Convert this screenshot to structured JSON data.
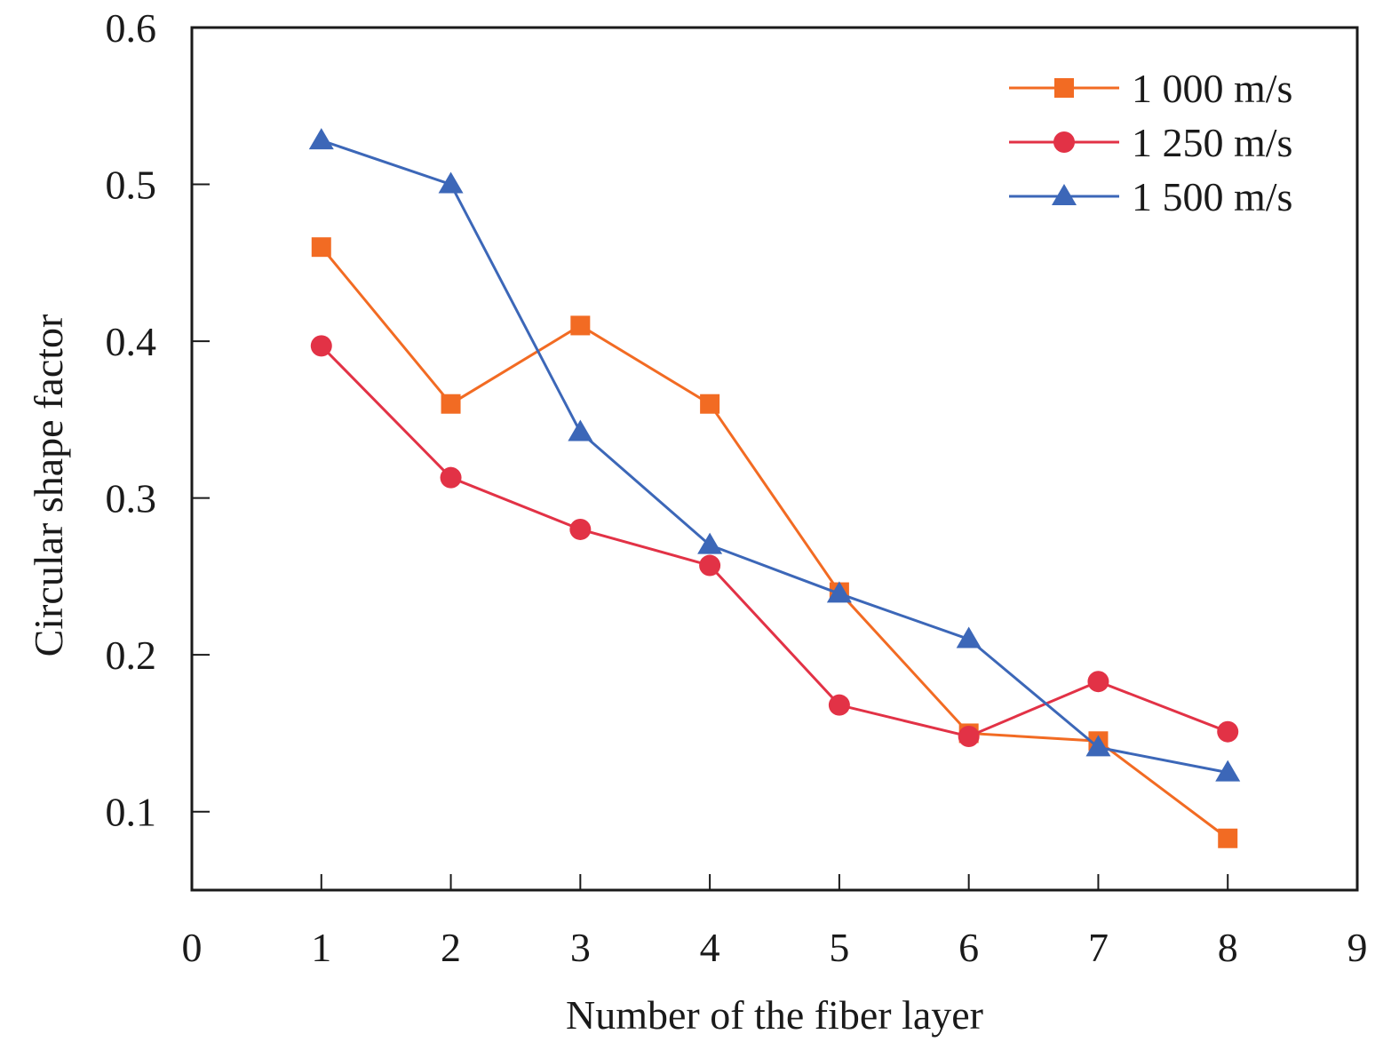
{
  "chart_data": {
    "type": "line",
    "title": "",
    "xlabel": "Number of the fiber layer",
    "ylabel": "Circular shape factor",
    "xlim": [
      0,
      9
    ],
    "ylim": [
      0.05,
      0.6
    ],
    "xticks": [
      0,
      1,
      2,
      3,
      4,
      5,
      6,
      7,
      8,
      9
    ],
    "xtick_labels": [
      "0",
      "1",
      "2",
      "3",
      "4",
      "5",
      "6",
      "7",
      "8",
      "9"
    ],
    "yticks": [
      0.1,
      0.2,
      0.3,
      0.4,
      0.5,
      0.6
    ],
    "ytick_labels": [
      "0.1",
      "0.2",
      "0.3",
      "0.4",
      "0.5",
      "0.6"
    ],
    "grid": false,
    "legend_position": "top-right",
    "x": [
      1,
      2,
      3,
      4,
      5,
      6,
      7,
      8
    ],
    "series": [
      {
        "name": "1 000 m/s",
        "marker": "square",
        "color": "#F26B23",
        "values": [
          0.46,
          0.36,
          0.41,
          0.36,
          0.24,
          0.15,
          0.145,
          0.083
        ]
      },
      {
        "name": "1 250 m/s",
        "marker": "circle",
        "color": "#E23246",
        "values": [
          0.397,
          0.313,
          0.28,
          0.257,
          0.168,
          0.148,
          0.183,
          0.151
        ]
      },
      {
        "name": "1 500 m/s",
        "marker": "triangle",
        "color": "#3C67B8",
        "values": [
          0.528,
          0.5,
          0.342,
          0.27,
          0.239,
          0.21,
          0.141,
          0.125
        ]
      }
    ]
  }
}
